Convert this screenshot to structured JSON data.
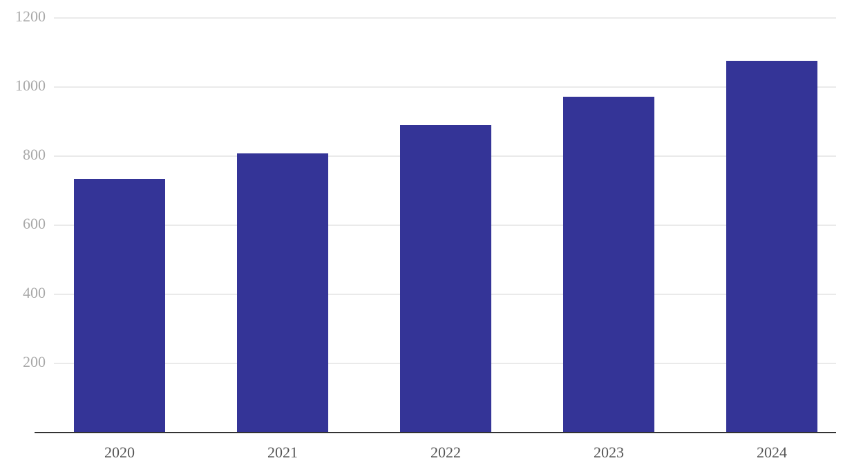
{
  "chart_data": {
    "type": "bar",
    "categories": [
      "2020",
      "2021",
      "2022",
      "2023",
      "2024"
    ],
    "values": [
      734,
      808,
      890,
      972,
      1076
    ],
    "color": "#343497",
    "ylim": [
      0,
      1200
    ],
    "yticks": [
      200,
      400,
      600,
      800,
      1000,
      1200
    ],
    "grid": true
  }
}
